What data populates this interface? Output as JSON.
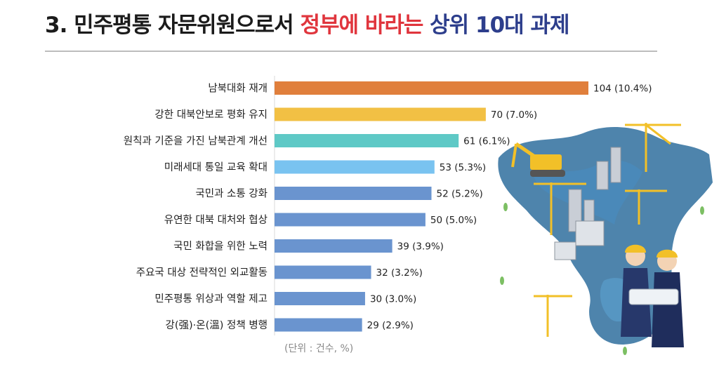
{
  "header": {
    "title_part1": "3. 민주평통 자문위원으로서 ",
    "title_part2": "정부에 바라는",
    "title_part3": " 상위 10대 과제"
  },
  "footnote": "(단위 : 건수, %)",
  "colors": {
    "title_red": "#e0353d",
    "title_blue": "#2d3e8c",
    "bar_rank1": "#e07f3c",
    "bar_rank2": "#f2c044",
    "bar_rank3": "#5ec9c6",
    "bar_rank4": "#79c3f0",
    "bar_other": "#6a94cf"
  },
  "chart_data": {
    "type": "bar",
    "orientation": "horizontal",
    "categories": [
      "남북대화 재개",
      "강한 대북안보로 평화 유지",
      "원칙과 기준을 가진 남북관계 개선",
      "미래세대 통일 교육 확대",
      "국민과 소통 강화",
      "유연한 대북 대처와 협상",
      "국민 화합을 위한 노력",
      "주요국 대상 전략적인 외교활동",
      "민주평통 위상과 역할 제고",
      "강(强)·온(溫) 정책 병행"
    ],
    "values": [
      104,
      70,
      61,
      53,
      52,
      50,
      39,
      32,
      30,
      29
    ],
    "percents": [
      10.4,
      7.0,
      6.1,
      5.3,
      5.2,
      5.0,
      3.9,
      3.2,
      3.0,
      2.9
    ],
    "data_labels": [
      "104 (10.4%)",
      "70 (7.0%)",
      "61 (6.1%)",
      "53 (5.3%)",
      "52 (5.2%)",
      "50 (5.0%)",
      "39 (3.9%)",
      "32 (3.2%)",
      "30 (3.0%)",
      "29 (2.9%)"
    ],
    "xlim": [
      0,
      104
    ],
    "grid": false,
    "legend": "none"
  }
}
